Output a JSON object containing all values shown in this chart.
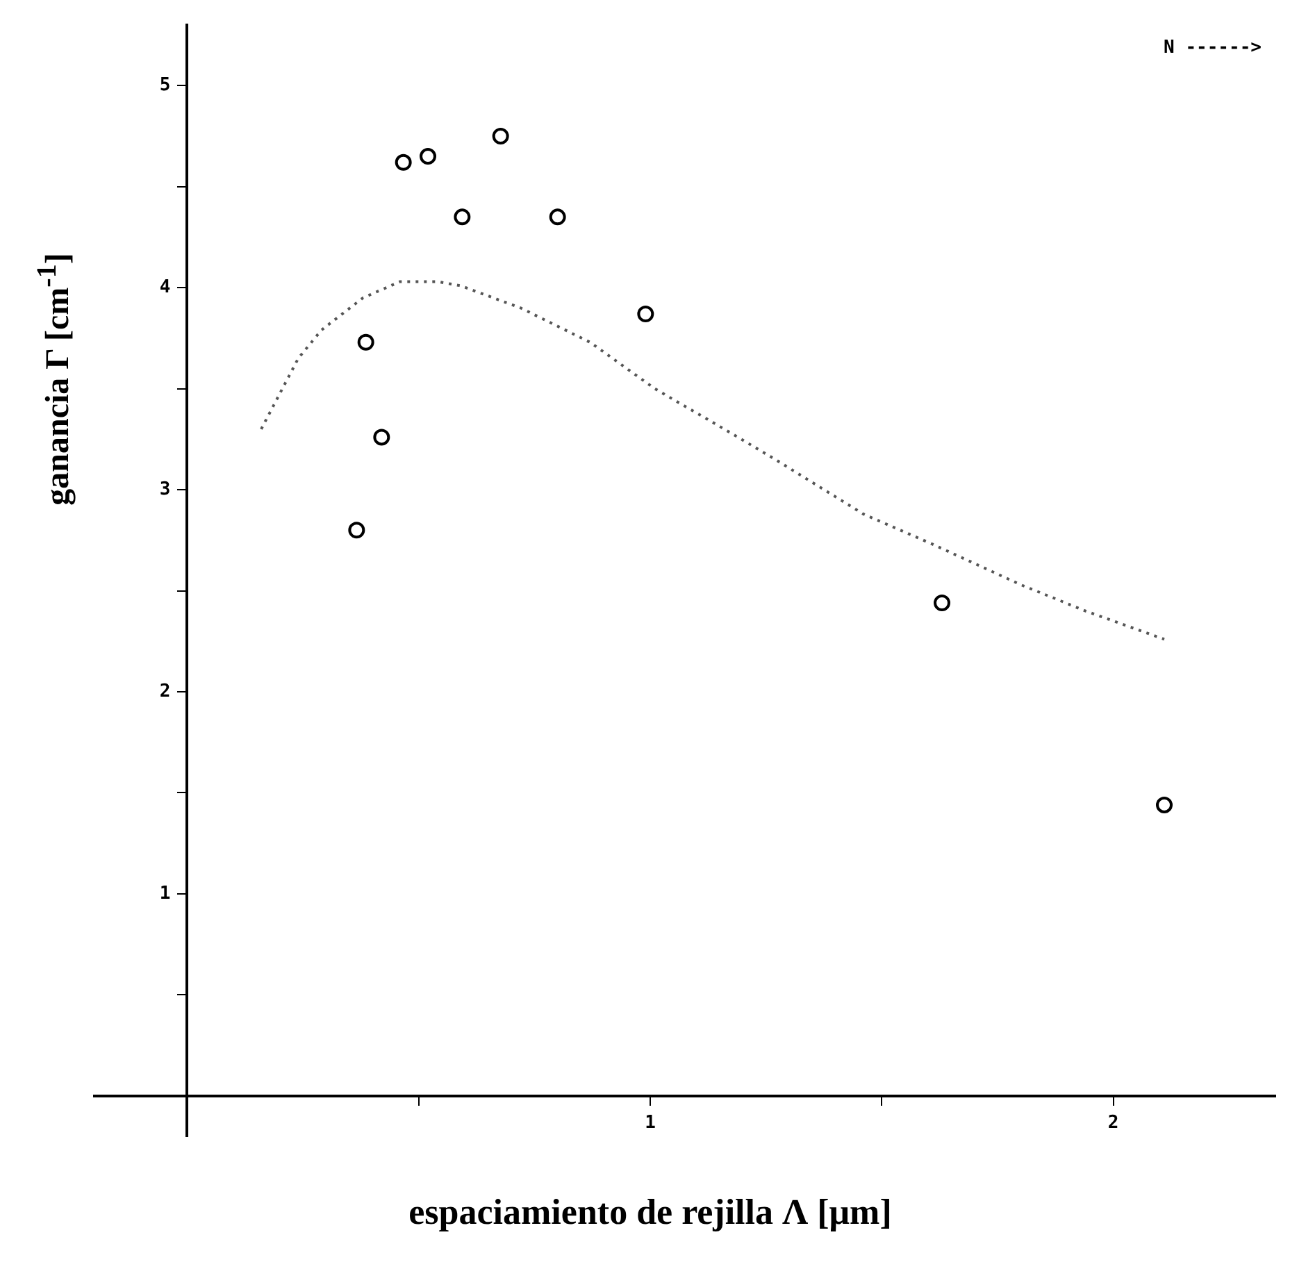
{
  "chart_data": {
    "type": "scatter",
    "xlabel": "espaciamiento de rejilla  Λ [μm]",
    "ylabel": "ganancia  Γ [cm$^{-1}$]",
    "annotations": [
      "N ------>"
    ],
    "xlim": [
      -0.2,
      2.35
    ],
    "ylim": [
      -0.2,
      5.3
    ],
    "xticks": [
      {
        "value": 0,
        "label": null
      },
      {
        "value": 0.5,
        "label": null
      },
      1,
      {
        "value": 1.5,
        "label": null
      },
      2
    ],
    "yticks": [
      {
        "value": 0.5,
        "label": null
      },
      1,
      {
        "value": 1.5,
        "label": null
      },
      2,
      {
        "value": 2.5,
        "label": null
      },
      3,
      {
        "value": 3.5,
        "label": null
      },
      4,
      {
        "value": 4.5,
        "label": null
      },
      5
    ],
    "grid": false,
    "legend": false,
    "series": [
      {
        "type": "scatter",
        "color": "#000000",
        "marker": "circle",
        "x": [
          0.366,
          0.386,
          0.42,
          0.467,
          0.52,
          0.594,
          0.677,
          0.8,
          0.99,
          1.63,
          2.11
        ],
        "values": [
          2.8,
          3.73,
          3.26,
          4.62,
          4.65,
          4.35,
          4.75,
          4.35,
          3.87,
          2.44,
          1.44
        ]
      },
      {
        "type": "line",
        "color": "#555555",
        "marker": "none",
        "line_style": "dotted",
        "x": [
          0.16,
          0.24,
          0.29,
          0.38,
          0.46,
          0.54,
          0.59,
          0.72,
          0.87,
          1.01,
          1.16,
          1.27,
          1.46,
          1.61,
          1.8,
          1.94,
          2.11
        ],
        "values": [
          3.3,
          3.65,
          3.79,
          3.95,
          4.03,
          4.03,
          4.01,
          3.9,
          3.73,
          3.5,
          3.3,
          3.15,
          2.88,
          2.73,
          2.53,
          2.4,
          2.26
        ]
      }
    ]
  }
}
